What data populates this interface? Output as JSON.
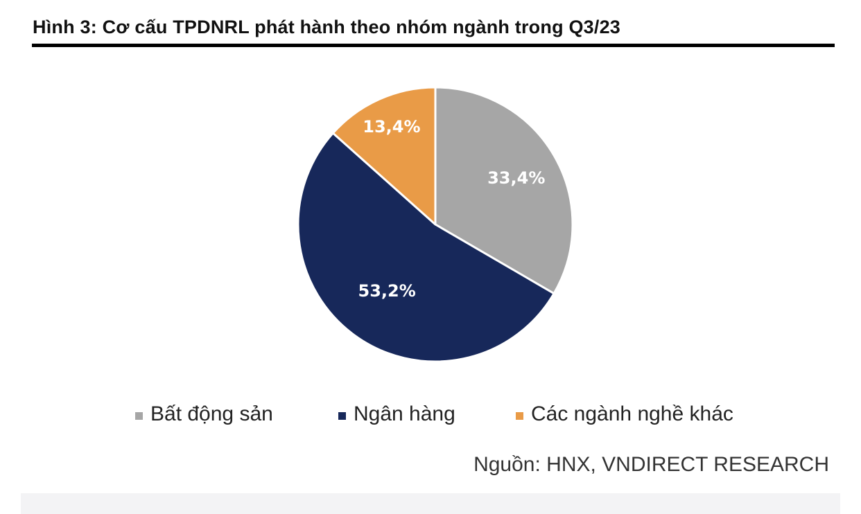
{
  "chart_data": {
    "type": "pie",
    "title": "Hình 3: Cơ cấu TPDNRL phát hành theo nhóm ngành trong Q3/23",
    "slices": [
      {
        "name": "Bất động sản",
        "value": 33.4,
        "label": "33,4%",
        "color": "#a6a6a6",
        "label_color": "#ffffff"
      },
      {
        "name": "Ngân hàng",
        "value": 53.2,
        "label": "53,2%",
        "color": "#17285a",
        "label_color": "#ffffff"
      },
      {
        "name": "Các ngành nghề khác",
        "value": 13.4,
        "label": "13,4%",
        "color": "#e99b47",
        "label_color": "#ffffff"
      }
    ],
    "start_angle_deg": 0,
    "direction": "clockwise",
    "legend_position": "bottom"
  },
  "source": "Nguồn: HNX, VNDIRECT RESEARCH"
}
